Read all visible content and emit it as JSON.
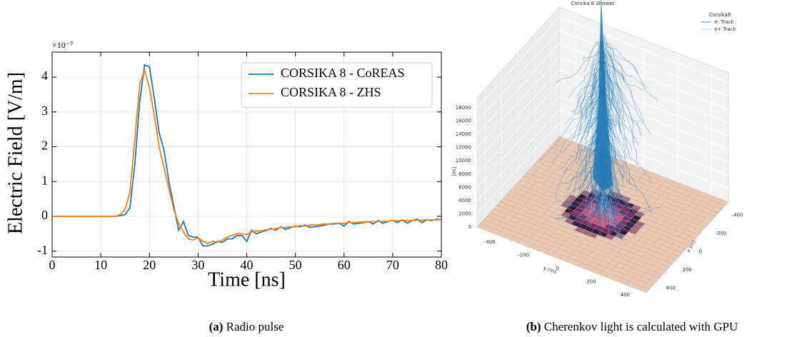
{
  "chart_data": [
    {
      "type": "line",
      "xlabel": "Time [ns]",
      "ylabel": "Electric Field [V/m]",
      "y_offset_text": "×10⁻⁷",
      "x": [
        0,
        1,
        2,
        3,
        4,
        5,
        6,
        7,
        8,
        9,
        10,
        11,
        12,
        13,
        14,
        15,
        16,
        17,
        18,
        19,
        20,
        21,
        22,
        23,
        24,
        25,
        26,
        27,
        28,
        29,
        30,
        31,
        32,
        33,
        34,
        35,
        36,
        37,
        38,
        39,
        40,
        41,
        42,
        43,
        44,
        45,
        46,
        47,
        48,
        49,
        50,
        51,
        52,
        53,
        54,
        55,
        56,
        57,
        58,
        59,
        60,
        61,
        62,
        63,
        64,
        65,
        66,
        67,
        68,
        69,
        70,
        71,
        72,
        73,
        74,
        75,
        76,
        77,
        78,
        79,
        80
      ],
      "series": [
        {
          "name": "CORSIKA 8 - CoREAS",
          "color": "#1f77b4",
          "values": [
            0,
            0,
            0,
            0,
            0,
            0,
            0,
            0,
            0,
            0,
            0,
            0,
            0,
            0,
            0.02,
            0.05,
            0.25,
            1.5,
            3.3,
            4.35,
            4.3,
            3.4,
            2.4,
            1.9,
            1.0,
            0.3,
            -0.4,
            -0.15,
            -0.55,
            -0.6,
            -0.6,
            -0.85,
            -0.85,
            -0.8,
            -0.72,
            -0.75,
            -0.65,
            -0.65,
            -0.55,
            -0.55,
            -0.72,
            -0.4,
            -0.5,
            -0.45,
            -0.4,
            -0.35,
            -0.4,
            -0.3,
            -0.38,
            -0.32,
            -0.28,
            -0.3,
            -0.25,
            -0.32,
            -0.3,
            -0.28,
            -0.25,
            -0.22,
            -0.22,
            -0.2,
            -0.28,
            -0.15,
            -0.22,
            -0.2,
            -0.18,
            -0.15,
            -0.22,
            -0.12,
            -0.2,
            -0.15,
            -0.12,
            -0.18,
            -0.1,
            -0.2,
            -0.12,
            -0.08,
            -0.18,
            -0.1,
            -0.12,
            -0.08,
            -0.1
          ]
        },
        {
          "name": "CORSIKA 8 - ZHS",
          "color": "#ff7f0e",
          "values": [
            0,
            0,
            0,
            0,
            0,
            0,
            0,
            0,
            0,
            0,
            0,
            0,
            0,
            0,
            0.05,
            0.2,
            0.7,
            2.2,
            3.8,
            4.2,
            3.7,
            2.9,
            2.0,
            1.4,
            0.8,
            0.2,
            -0.2,
            -0.45,
            -0.65,
            -0.68,
            -0.62,
            -0.72,
            -0.78,
            -0.72,
            -0.75,
            -0.68,
            -0.6,
            -0.55,
            -0.5,
            -0.5,
            -0.52,
            -0.45,
            -0.42,
            -0.42,
            -0.38,
            -0.38,
            -0.35,
            -0.32,
            -0.32,
            -0.3,
            -0.3,
            -0.27,
            -0.28,
            -0.25,
            -0.25,
            -0.24,
            -0.22,
            -0.22,
            -0.2,
            -0.2,
            -0.2,
            -0.18,
            -0.18,
            -0.17,
            -0.16,
            -0.16,
            -0.15,
            -0.15,
            -0.14,
            -0.14,
            -0.13,
            -0.13,
            -0.12,
            -0.12,
            -0.12,
            -0.11,
            -0.11,
            -0.1,
            -0.1,
            -0.1,
            -0.1
          ]
        }
      ],
      "xlim": [
        0,
        80
      ],
      "xticks": [
        0,
        10,
        20,
        30,
        40,
        50,
        60,
        70,
        80
      ],
      "ylim": [
        -1.17,
        4.72
      ],
      "yticks": [
        -1,
        0,
        1,
        2,
        3,
        4
      ],
      "grid": true,
      "legend": "upper right"
    },
    {
      "type": "surface3d",
      "title": "Corsika 8 Shower",
      "legend_title": "Corsika8",
      "series": [
        {
          "name": "e- Track",
          "color": "#1f77b4"
        },
        {
          "name": "e+ Track",
          "color": "#9ecae1"
        }
      ],
      "xlabel": "x (m)",
      "ylabel": "y (m)",
      "zlabel": "[m]",
      "xlim": [
        -500,
        500
      ],
      "ylim": [
        -500,
        500
      ],
      "zlim": [
        0,
        19500
      ],
      "xticks": [
        -400,
        -200,
        0,
        200,
        400
      ],
      "yticks": [
        -400,
        -200,
        0,
        200,
        400
      ],
      "zticks": [
        0,
        2000,
        4000,
        6000,
        8000,
        10000,
        12000,
        14000,
        16000,
        18000
      ]
    }
  ],
  "captions": [
    {
      "label": "(a)",
      "text": "Radio pulse"
    },
    {
      "label": "(b)",
      "text": "Cherenkov light is calculated with GPU"
    }
  ]
}
